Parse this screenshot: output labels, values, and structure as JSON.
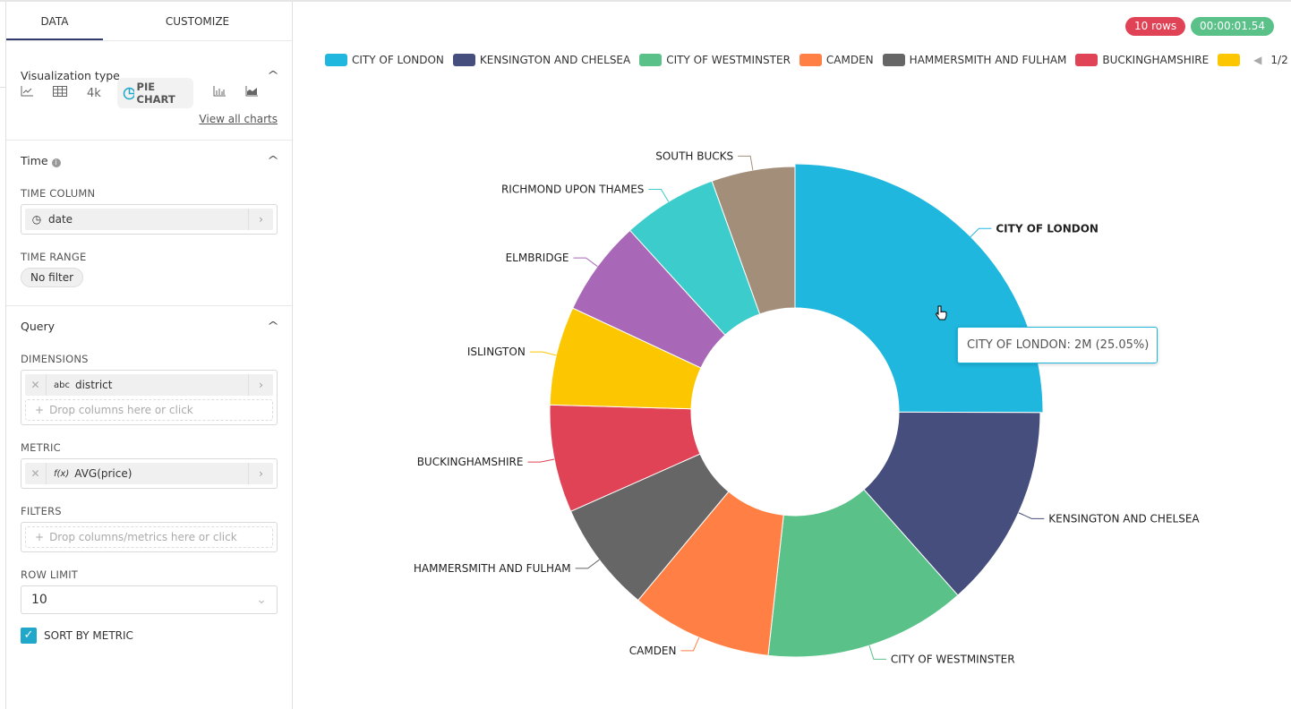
{
  "tabs": {
    "data": "DATA",
    "customize": "CUSTOMIZE"
  },
  "viz": {
    "title": "Visualization type",
    "big_number": "4k",
    "pie": "PIE CHART",
    "view_all": "View all charts"
  },
  "time": {
    "title": "Time",
    "column_label": "TIME COLUMN",
    "column_value": "date",
    "range_label": "TIME RANGE",
    "range_value": "No filter"
  },
  "query": {
    "title": "Query",
    "dimensions_label": "DIMENSIONS",
    "dimension_type": "abc",
    "dimension_value": "district",
    "dimension_drop": "Drop columns here or click",
    "metric_label": "METRIC",
    "metric_type": "f(x)",
    "metric_value": "AVG(price)",
    "filters_label": "FILTERS",
    "filters_drop": "Drop columns/metrics here or click",
    "row_limit_label": "ROW LIMIT",
    "row_limit_value": "10",
    "sort_label": "SORT BY METRIC",
    "sort_checked": true
  },
  "status": {
    "rows": "10 rows",
    "duration": "00:00:01.54",
    "rows_color": "#E04355",
    "duration_color": "#5AC189"
  },
  "legend": {
    "page": "1/2"
  },
  "tooltip": "CITY OF LONDON: 2M (25.05%)",
  "chart_data": {
    "type": "pie",
    "donut": true,
    "highlighted": "CITY OF LONDON",
    "categories": [
      "CITY OF LONDON",
      "KENSINGTON AND CHELSEA",
      "CITY OF WESTMINSTER",
      "CAMDEN",
      "HAMMERSMITH AND FULHAM",
      "BUCKINGHAMSHIRE",
      "ISLINGTON",
      "ELMBRIDGE",
      "RICHMOND UPON THAMES",
      "SOUTH BUCKS"
    ],
    "values": [
      25.05,
      13.4,
      13.3,
      9.3,
      7.3,
      7.1,
      6.5,
      6.3,
      6.25,
      5.5
    ],
    "colors": [
      "#20B7DE",
      "#454E7C",
      "#5AC189",
      "#FF7F44",
      "#666666",
      "#E04355",
      "#FCC700",
      "#A868B7",
      "#3CCCCB",
      "#A38F79"
    ],
    "legend_visible": [
      "CITY OF LONDON",
      "KENSINGTON AND CHELSEA",
      "CITY OF WESTMINSTER",
      "CAMDEN",
      "HAMMERSMITH AND FULHAM",
      "BUCKINGHAMSHIRE",
      ""
    ],
    "legend_placement": "top"
  }
}
